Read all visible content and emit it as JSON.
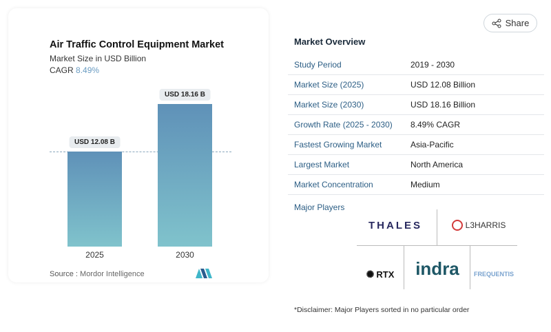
{
  "header": {
    "share_label": "Share",
    "share_icon": "share-icon"
  },
  "chart_data": {
    "type": "bar",
    "title": "Air Traffic Control Equipment Market",
    "subtitle": "Market Size in USD Billion",
    "cagr_label": "CAGR",
    "cagr_value": "8.49%",
    "categories": [
      "2025",
      "2030"
    ],
    "values": [
      12.08,
      18.16
    ],
    "data_labels": [
      "USD 12.08 B",
      "USD 18.16 B"
    ],
    "bar_color_top": "#5f91b8",
    "bar_color_bottom": "#80c3cc",
    "ylim": [
      0,
      18.16
    ],
    "reference_line": "dashed at 2025 value",
    "source_label": "Source :",
    "source_value": "Mordor Intelligence"
  },
  "overview": {
    "title": "Market Overview",
    "rows": [
      {
        "key": "Study Period",
        "value": "2019 - 2030"
      },
      {
        "key": "Market Size (2025)",
        "value": "USD 12.08 Billion"
      },
      {
        "key": "Market Size (2030)",
        "value": "USD 18.16 Billion"
      },
      {
        "key": "Growth Rate (2025 - 2030)",
        "value": "8.49% CAGR"
      },
      {
        "key": "Fastest Growing Market",
        "value": "Asia-Pacific"
      },
      {
        "key": "Largest Market",
        "value": "North America"
      },
      {
        "key": "Market Concentration",
        "value": "Medium"
      }
    ],
    "major_players_label": "Major Players",
    "players": [
      "THALES",
      "L3HARRIS",
      "RTX",
      "indra",
      "FREQUENTIS"
    ],
    "disclaimer": "*Disclaimer: Major Players sorted in no particular order"
  }
}
